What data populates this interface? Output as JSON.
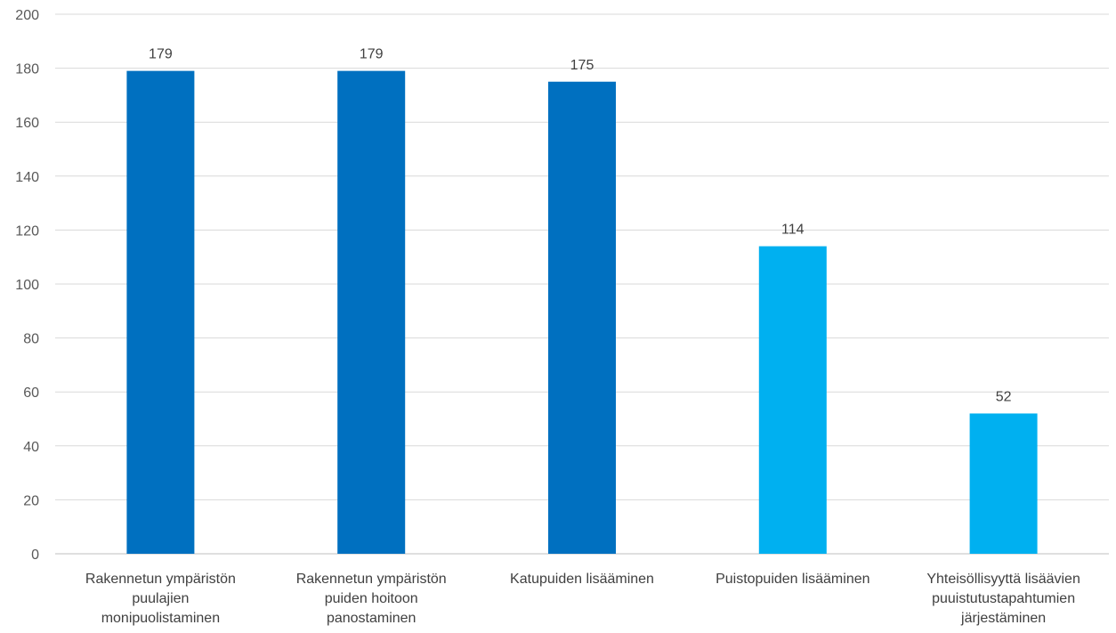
{
  "chart_data": {
    "type": "bar",
    "title": "",
    "xlabel": "",
    "ylabel": "",
    "ylim": [
      0,
      200
    ],
    "yticks": [
      0,
      20,
      40,
      60,
      80,
      100,
      120,
      140,
      160,
      180,
      200
    ],
    "grid": true,
    "legend": "none",
    "data_labels": true,
    "categories": [
      [
        "Rakennetun ympäristön",
        "puulajien",
        "monipuolistaminen"
      ],
      [
        "Rakennetun ympäristön",
        "puiden hoitoon",
        "panostaminen"
      ],
      [
        "Katupuiden lisääminen"
      ],
      [
        "Puistopuiden lisääminen"
      ],
      [
        "Yhteisöllisyyttä lisäävien",
        "puuistutustapahtumien",
        "järjestäminen"
      ]
    ],
    "values": [
      179,
      179,
      175,
      114,
      52
    ],
    "bar_colors": [
      "#0070c0",
      "#0070c0",
      "#0070c0",
      "#00b0f0",
      "#00b0f0"
    ]
  }
}
